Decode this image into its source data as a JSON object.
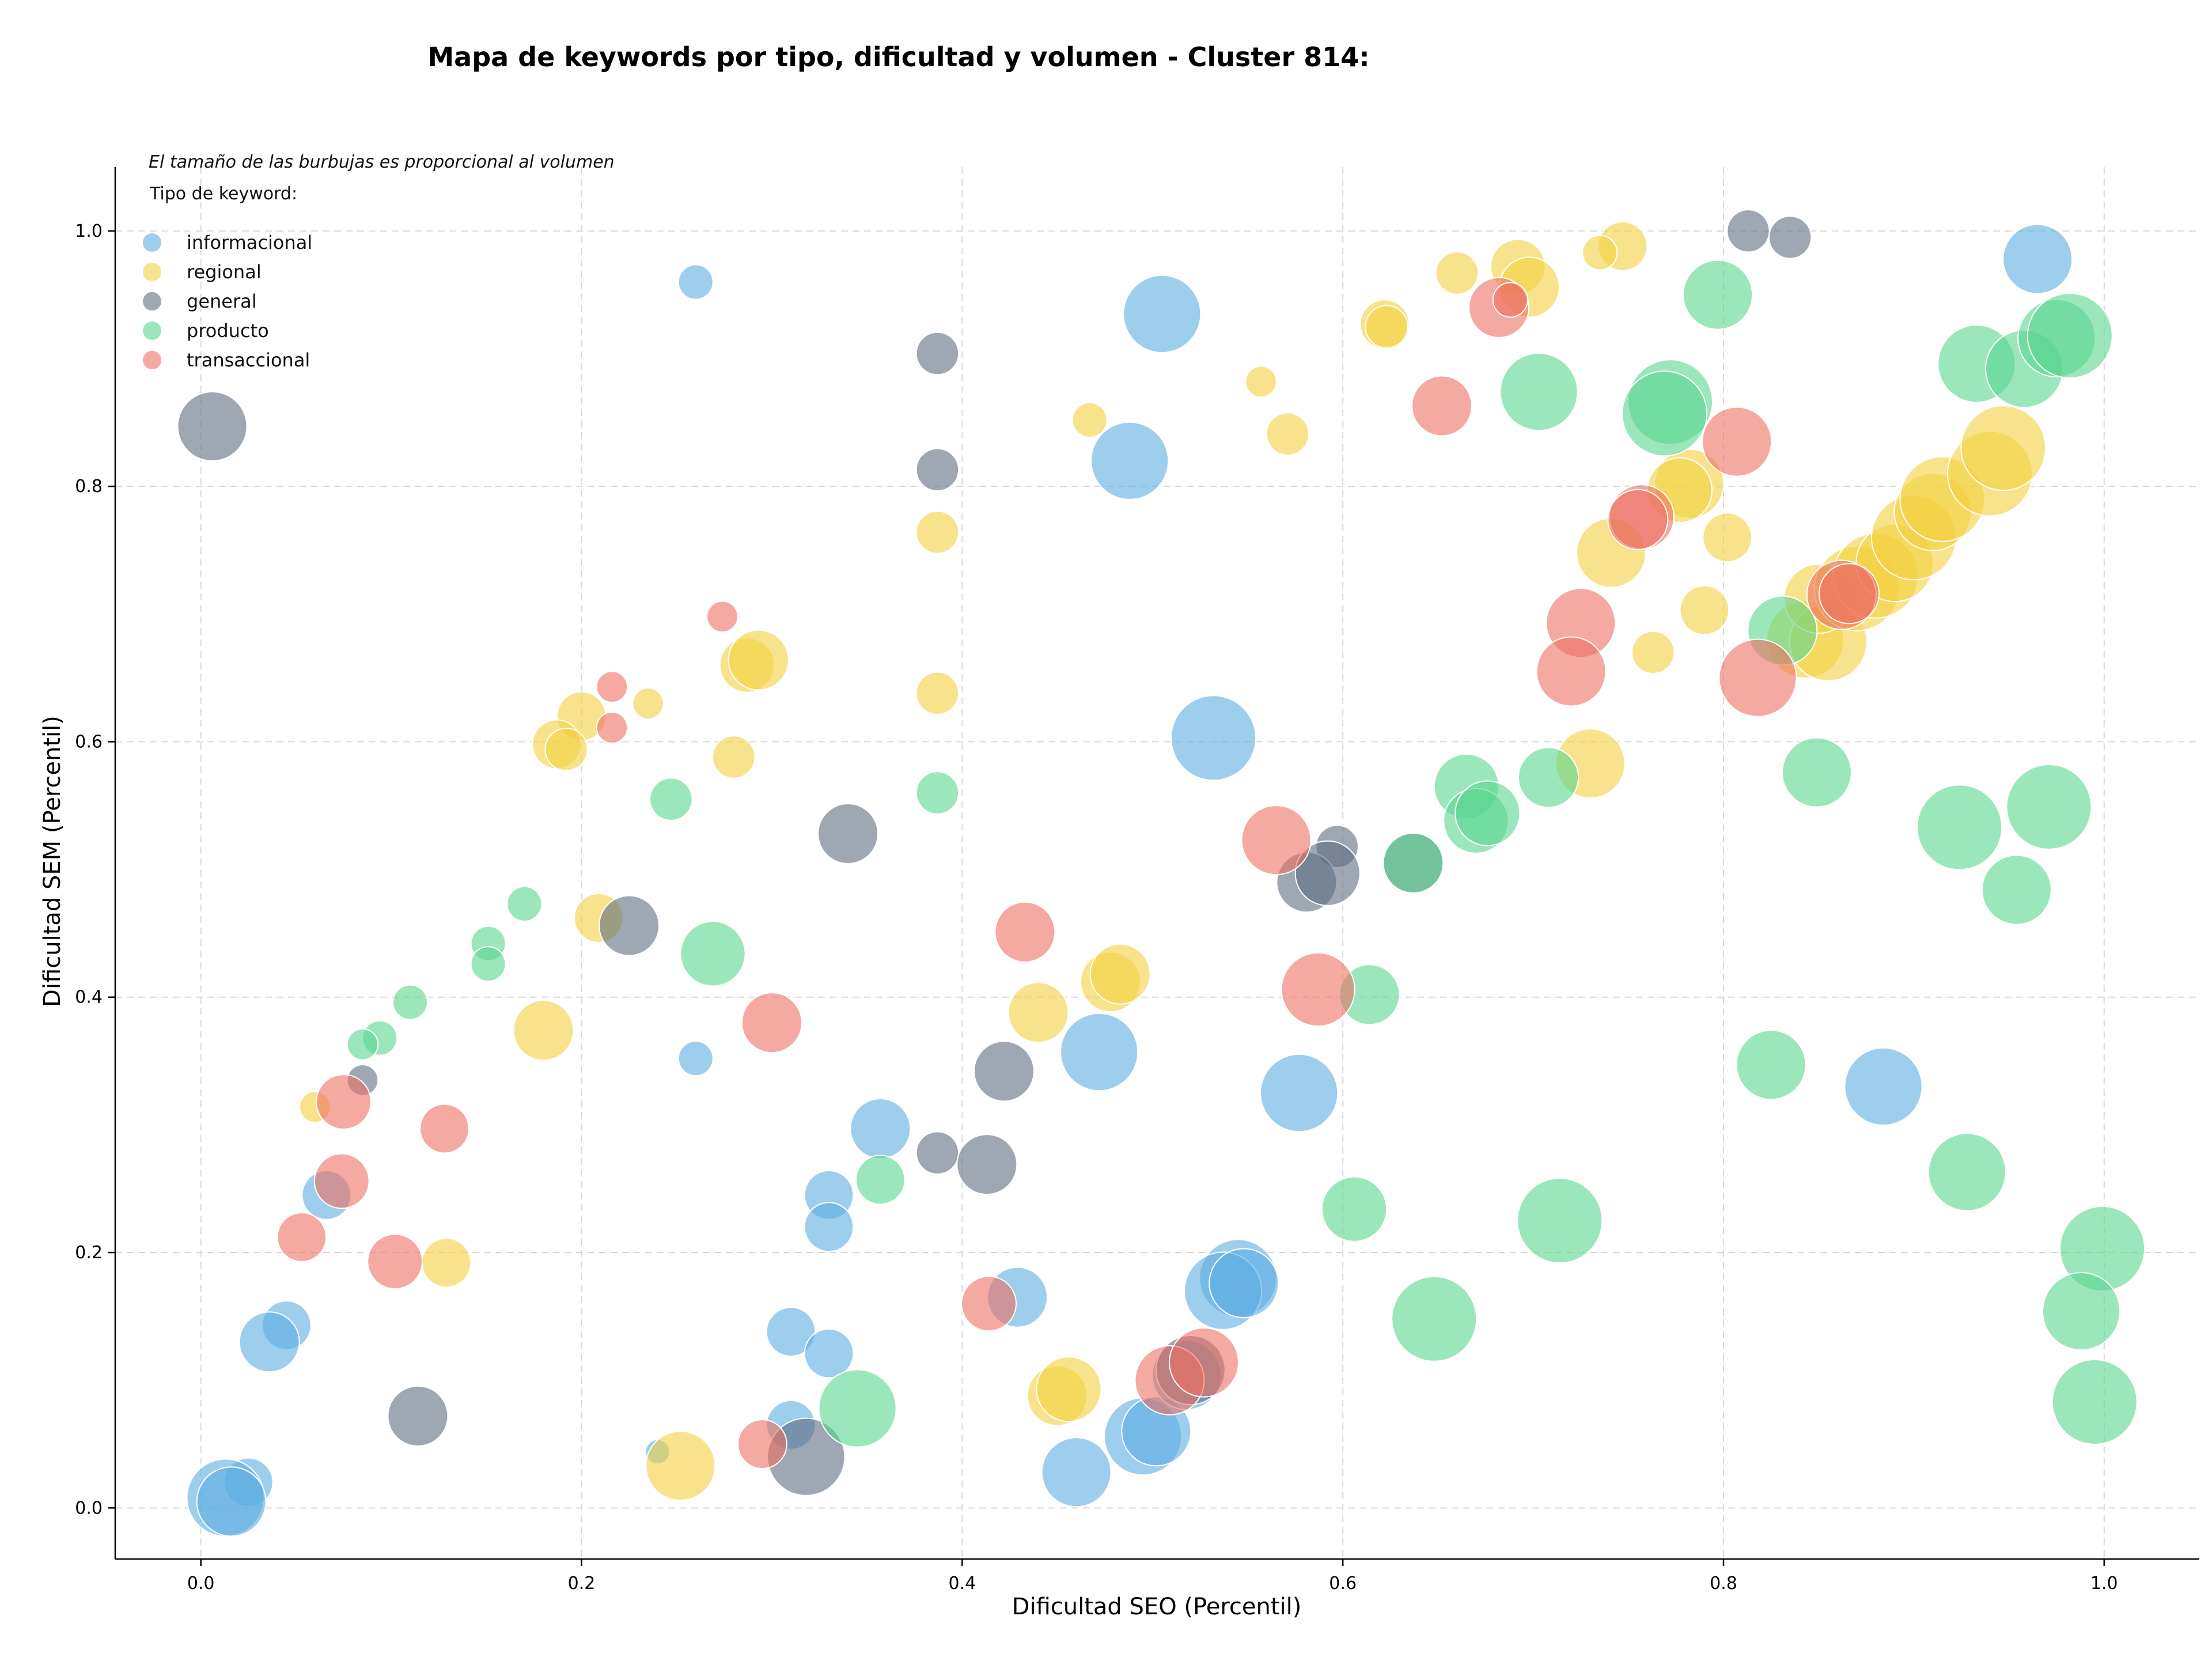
{
  "chart_data": {
    "type": "scatter",
    "title": "Mapa de keywords por tipo, dificultad y volumen - Cluster 814:",
    "xlabel": "Dificultad SEO (Percentil)",
    "ylabel": "Dificultad SEM (Percentil)",
    "xlim": [
      -0.045,
      1.05
    ],
    "ylim": [
      -0.04,
      1.05
    ],
    "xticks": [
      0.0,
      0.2,
      0.4,
      0.6,
      0.8,
      1.0
    ],
    "yticks": [
      0.0,
      0.2,
      0.4,
      0.6,
      0.8,
      1.0
    ],
    "xtick_labels": [
      "0.0",
      "0.2",
      "0.4",
      "0.6",
      "0.8",
      "1.0"
    ],
    "ytick_labels": [
      "0.0",
      "0.2",
      "0.4",
      "0.6",
      "0.8",
      "1.0"
    ],
    "grid": true,
    "annotation": "El tamaño de las burbujas es proporcional al volumen",
    "legend_title": "Tipo de keyword:",
    "legend_position": "top-left",
    "series": [
      {
        "name": "informacional",
        "color": "#5DADE2",
        "points": [
          [
            0.26,
            0.96,
            1
          ],
          [
            0.965,
            0.978,
            4
          ],
          [
            0.505,
            0.935,
            5
          ],
          [
            0.488,
            0.82,
            5
          ],
          [
            0.532,
            0.603,
            6
          ],
          [
            0.472,
            0.357,
            5
          ],
          [
            0.577,
            0.325,
            5
          ],
          [
            0.884,
            0.33,
            5
          ],
          [
            0.26,
            0.352,
            1
          ],
          [
            0.357,
            0.297,
            3
          ],
          [
            0.066,
            0.245,
            2
          ],
          [
            0.33,
            0.245,
            2
          ],
          [
            0.33,
            0.22,
            2
          ],
          [
            0.429,
            0.165,
            3
          ],
          [
            0.545,
            0.18,
            5
          ],
          [
            0.537,
            0.17,
            5
          ],
          [
            0.548,
            0.176,
            4
          ],
          [
            0.045,
            0.143,
            2
          ],
          [
            0.036,
            0.13,
            3
          ],
          [
            0.31,
            0.138,
            2
          ],
          [
            0.33,
            0.121,
            2
          ],
          [
            0.025,
            0.02,
            2
          ],
          [
            0.013,
            0.008,
            5
          ],
          [
            0.016,
            0.005,
            4
          ],
          [
            0.31,
            0.065,
            2
          ],
          [
            0.24,
            0.044,
            0.5
          ],
          [
            0.46,
            0.028,
            4
          ],
          [
            0.495,
            0.056,
            5
          ],
          [
            0.502,
            0.06,
            4
          ],
          [
            0.518,
            0.104,
            4
          ]
        ]
      },
      {
        "name": "regional",
        "color": "#F4D03F",
        "points": [
          [
            0.747,
            0.988,
            2
          ],
          [
            0.735,
            0.983,
            1
          ],
          [
            0.66,
            0.967,
            1.5
          ],
          [
            0.692,
            0.972,
            2.5
          ],
          [
            0.698,
            0.956,
            3
          ],
          [
            0.622,
            0.927,
            2
          ],
          [
            0.623,
            0.925,
            1.5
          ],
          [
            0.557,
            0.882,
            0.8
          ],
          [
            0.467,
            0.852,
            1
          ],
          [
            0.571,
            0.841,
            1.5
          ],
          [
            0.387,
            0.764,
            1.5
          ],
          [
            0.782,
            0.802,
            4
          ],
          [
            0.777,
            0.797,
            3.5
          ],
          [
            0.802,
            0.76,
            2
          ],
          [
            0.741,
            0.748,
            4
          ],
          [
            0.79,
            0.703,
            2
          ],
          [
            0.763,
            0.67,
            1.5
          ],
          [
            0.843,
            0.68,
            5
          ],
          [
            0.855,
            0.678,
            5
          ],
          [
            0.85,
            0.712,
            4
          ],
          [
            0.87,
            0.72,
            6
          ],
          [
            0.88,
            0.73,
            6
          ],
          [
            0.89,
            0.74,
            5
          ],
          [
            0.9,
            0.76,
            6
          ],
          [
            0.91,
            0.78,
            5
          ],
          [
            0.915,
            0.79,
            6
          ],
          [
            0.94,
            0.81,
            6
          ],
          [
            0.947,
            0.83,
            6
          ],
          [
            0.73,
            0.583,
            4
          ],
          [
            0.287,
            0.66,
            2.5
          ],
          [
            0.293,
            0.664,
            3
          ],
          [
            0.387,
            0.638,
            1.5
          ],
          [
            0.2,
            0.62,
            2
          ],
          [
            0.235,
            0.63,
            0.8
          ],
          [
            0.28,
            0.588,
            1.5
          ],
          [
            0.187,
            0.598,
            2
          ],
          [
            0.192,
            0.594,
            1.5
          ],
          [
            0.209,
            0.462,
            2
          ],
          [
            0.18,
            0.374,
            3
          ],
          [
            0.06,
            0.314,
            0.8
          ],
          [
            0.129,
            0.192,
            2
          ],
          [
            0.44,
            0.388,
            3
          ],
          [
            0.478,
            0.412,
            3
          ],
          [
            0.483,
            0.418,
            3
          ],
          [
            0.45,
            0.088,
            3
          ],
          [
            0.456,
            0.093,
            3.5
          ],
          [
            0.252,
            0.033,
            4
          ]
        ]
      },
      {
        "name": "general",
        "color": "#5D6D7E",
        "points": [
          [
            0.813,
            1.0,
            1.5
          ],
          [
            0.835,
            0.995,
            1.5
          ],
          [
            0.387,
            0.904,
            1.5
          ],
          [
            0.387,
            0.813,
            1.5
          ],
          [
            0.006,
            0.847,
            4
          ],
          [
            0.34,
            0.528,
            3
          ],
          [
            0.225,
            0.456,
            3
          ],
          [
            0.597,
            0.518,
            1.5
          ],
          [
            0.581,
            0.49,
            3
          ],
          [
            0.592,
            0.497,
            3.5
          ],
          [
            0.637,
            0.505,
            3
          ],
          [
            0.085,
            0.335,
            0.8
          ],
          [
            0.422,
            0.342,
            3
          ],
          [
            0.387,
            0.278,
            1.5
          ],
          [
            0.413,
            0.269,
            3
          ],
          [
            0.114,
            0.072,
            3
          ],
          [
            0.318,
            0.04,
            5
          ],
          [
            0.52,
            0.108,
            4
          ]
        ]
      },
      {
        "name": "producto",
        "color": "#58D68D",
        "points": [
          [
            0.797,
            0.95,
            4
          ],
          [
            0.703,
            0.874,
            5
          ],
          [
            0.772,
            0.866,
            6
          ],
          [
            0.769,
            0.857,
            6
          ],
          [
            0.933,
            0.896,
            5
          ],
          [
            0.958,
            0.892,
            5
          ],
          [
            0.975,
            0.916,
            5
          ],
          [
            0.982,
            0.918,
            6
          ],
          [
            0.831,
            0.687,
            4
          ],
          [
            0.849,
            0.576,
            4
          ],
          [
            0.924,
            0.533,
            6
          ],
          [
            0.971,
            0.549,
            6
          ],
          [
            0.954,
            0.484,
            4
          ],
          [
            0.665,
            0.565,
            3.5
          ],
          [
            0.67,
            0.538,
            3.5
          ],
          [
            0.676,
            0.544,
            3.5
          ],
          [
            0.708,
            0.572,
            3
          ],
          [
            0.614,
            0.402,
            3
          ],
          [
            0.637,
            0.505,
            3
          ],
          [
            0.825,
            0.347,
            4
          ],
          [
            0.928,
            0.263,
            5
          ],
          [
            0.606,
            0.234,
            3.5
          ],
          [
            0.714,
            0.225,
            6
          ],
          [
            0.648,
            0.148,
            6
          ],
          [
            0.999,
            0.203,
            6
          ],
          [
            0.988,
            0.154,
            5
          ],
          [
            0.995,
            0.083,
            6
          ],
          [
            0.387,
            0.56,
            1.5
          ],
          [
            0.247,
            0.555,
            1.5
          ],
          [
            0.269,
            0.434,
            3.5
          ],
          [
            0.17,
            0.473,
            1
          ],
          [
            0.151,
            0.442,
            1
          ],
          [
            0.151,
            0.426,
            1
          ],
          [
            0.11,
            0.396,
            1
          ],
          [
            0.094,
            0.368,
            1
          ],
          [
            0.085,
            0.363,
            0.8
          ],
          [
            0.357,
            0.257,
            2
          ],
          [
            0.345,
            0.078,
            5
          ]
        ]
      },
      {
        "name": "transaccional",
        "color": "#EC7063",
        "points": [
          [
            0.682,
            0.94,
            3
          ],
          [
            0.688,
            0.946,
            1
          ],
          [
            0.652,
            0.863,
            3
          ],
          [
            0.807,
            0.835,
            4
          ],
          [
            0.757,
            0.776,
            3.5
          ],
          [
            0.755,
            0.774,
            3
          ],
          [
            0.862,
            0.715,
            4
          ],
          [
            0.866,
            0.716,
            3
          ],
          [
            0.725,
            0.693,
            4
          ],
          [
            0.72,
            0.655,
            4
          ],
          [
            0.818,
            0.65,
            5
          ],
          [
            0.565,
            0.523,
            4
          ],
          [
            0.587,
            0.406,
            4.5
          ],
          [
            0.433,
            0.451,
            3
          ],
          [
            0.3,
            0.38,
            3
          ],
          [
            0.274,
            0.698,
            0.8
          ],
          [
            0.216,
            0.643,
            0.8
          ],
          [
            0.216,
            0.611,
            0.8
          ],
          [
            0.075,
            0.318,
            2.5
          ],
          [
            0.074,
            0.256,
            2.5
          ],
          [
            0.053,
            0.212,
            2
          ],
          [
            0.128,
            0.297,
            2
          ],
          [
            0.102,
            0.193,
            2.5
          ],
          [
            0.414,
            0.16,
            2.5
          ],
          [
            0.509,
            0.1,
            4
          ],
          [
            0.527,
            0.114,
            4
          ],
          [
            0.295,
            0.05,
            2
          ]
        ]
      }
    ]
  }
}
